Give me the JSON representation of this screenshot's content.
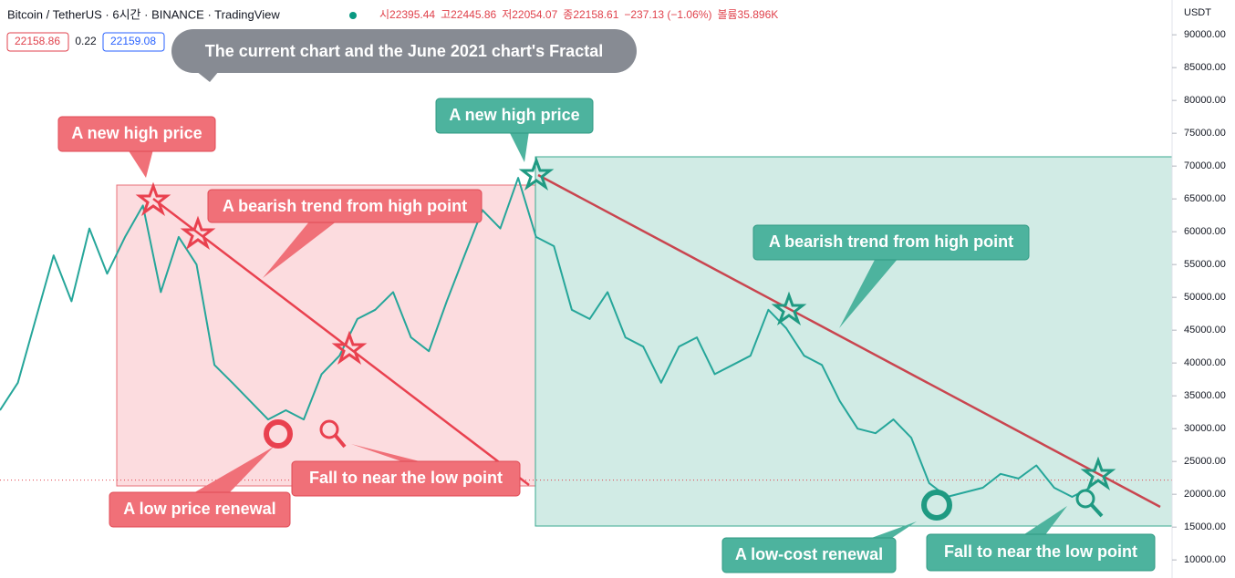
{
  "chart_data": {
    "type": "line",
    "title": "Bitcoin / TetherUS · 6시간 · BINANCE · TradingView",
    "ohlc": [
      "시22395.44",
      "고22445.86",
      "저22054.07",
      "종22158.61",
      "−237.13 (−1.06%)",
      "볼륨35.896K"
    ],
    "price_tags": [
      "22158.86",
      "0.22",
      "22159.08"
    ],
    "currency": "USDT",
    "current_price": 22158.86,
    "annotations": [
      "The current chart and the June 2021 chart's Fractal",
      "A new high price",
      "A bearish trend from high point",
      "A low price renewal",
      "Fall to near the low point",
      "A new high price",
      "A bearish trend from high point",
      "A low-cost renewal",
      "Fall to near the low point"
    ],
    "series": [
      {
        "name": "BTCUSDT",
        "color": "#26a69a",
        "values": [
          32800,
          37000,
          46700,
          56400,
          49400,
          60500,
          53600,
          59200,
          64000,
          50800,
          59200,
          55000,
          39700,
          37000,
          34200,
          31400,
          32800,
          31400,
          38300,
          41100,
          46700,
          48100,
          50800,
          43900,
          41800,
          49400,
          56400,
          63300,
          60500,
          68200,
          59200,
          57800,
          48100,
          46700,
          50800,
          43900,
          42500,
          37000,
          42500,
          43900,
          38300,
          39700,
          41100,
          48100,
          45300,
          41100,
          39700,
          34200,
          30000,
          29300,
          31400,
          28600,
          21700,
          19600,
          20300,
          21000,
          23100,
          22400,
          24400,
          21000,
          19600,
          21000
        ]
      }
    ],
    "ylim": [
      7800,
      95300
    ],
    "yticks": [
      {
        "value": 10000,
        "label": "10000.00"
      },
      {
        "value": 15000,
        "label": "15000.00"
      },
      {
        "value": 20000,
        "label": "20000.00"
      },
      {
        "value": 25000,
        "label": "25000.00"
      },
      {
        "value": 30000,
        "label": "30000.00"
      },
      {
        "value": 35000,
        "label": "35000.00"
      },
      {
        "value": 40000,
        "label": "40000.00"
      },
      {
        "value": 45000,
        "label": "45000.00"
      },
      {
        "value": 50000,
        "label": "50000.00"
      },
      {
        "value": 55000,
        "label": "55000.00"
      },
      {
        "value": 60000,
        "label": "60000.00"
      },
      {
        "value": 65000,
        "label": "65000.00"
      },
      {
        "value": 70000,
        "label": "70000.00"
      },
      {
        "value": 75000,
        "label": "75000.00"
      },
      {
        "value": 80000,
        "label": "80000.00"
      },
      {
        "value": 85000,
        "label": "85000.00"
      },
      {
        "value": 90000,
        "label": "90000.00"
      }
    ]
  }
}
